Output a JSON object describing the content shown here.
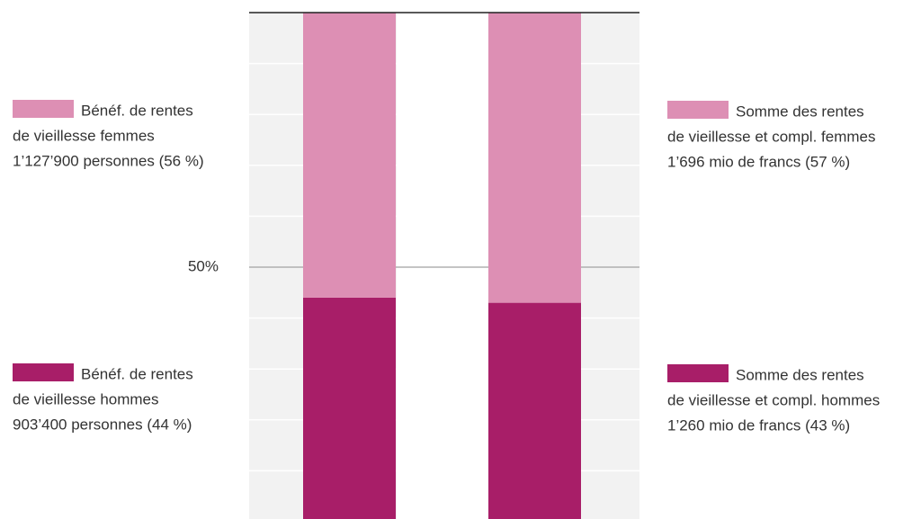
{
  "chart_data": {
    "type": "stacked_bar",
    "categories": [
      null,
      null
    ],
    "series": [
      {
        "color": "#a81e68",
        "values": [
          44,
          43
        ],
        "labels": [
          [
            "Bénéf. de rentes",
            "de vieillesse hommes",
            "903’400 personnes (44 %)"
          ],
          [
            "Somme des rentes",
            "de vieillesse et compl. hommes",
            "1’260 mio de francs (43 %)"
          ]
        ]
      },
      {
        "color": "#dd8fb4",
        "values": [
          56,
          57
        ],
        "labels": [
          [
            "Bénéf. de rentes",
            "de vieillesse femmes",
            "1’127’900 personnes (56 %)"
          ],
          [
            "Somme des rentes",
            "de vieillesse et compl. femmes",
            "1’696 mio de francs (57 %)"
          ]
        ]
      }
    ],
    "ylim": [
      0,
      100
    ],
    "yticks": [
      {
        "value": 50,
        "label": "50%"
      }
    ],
    "grid": true
  }
}
